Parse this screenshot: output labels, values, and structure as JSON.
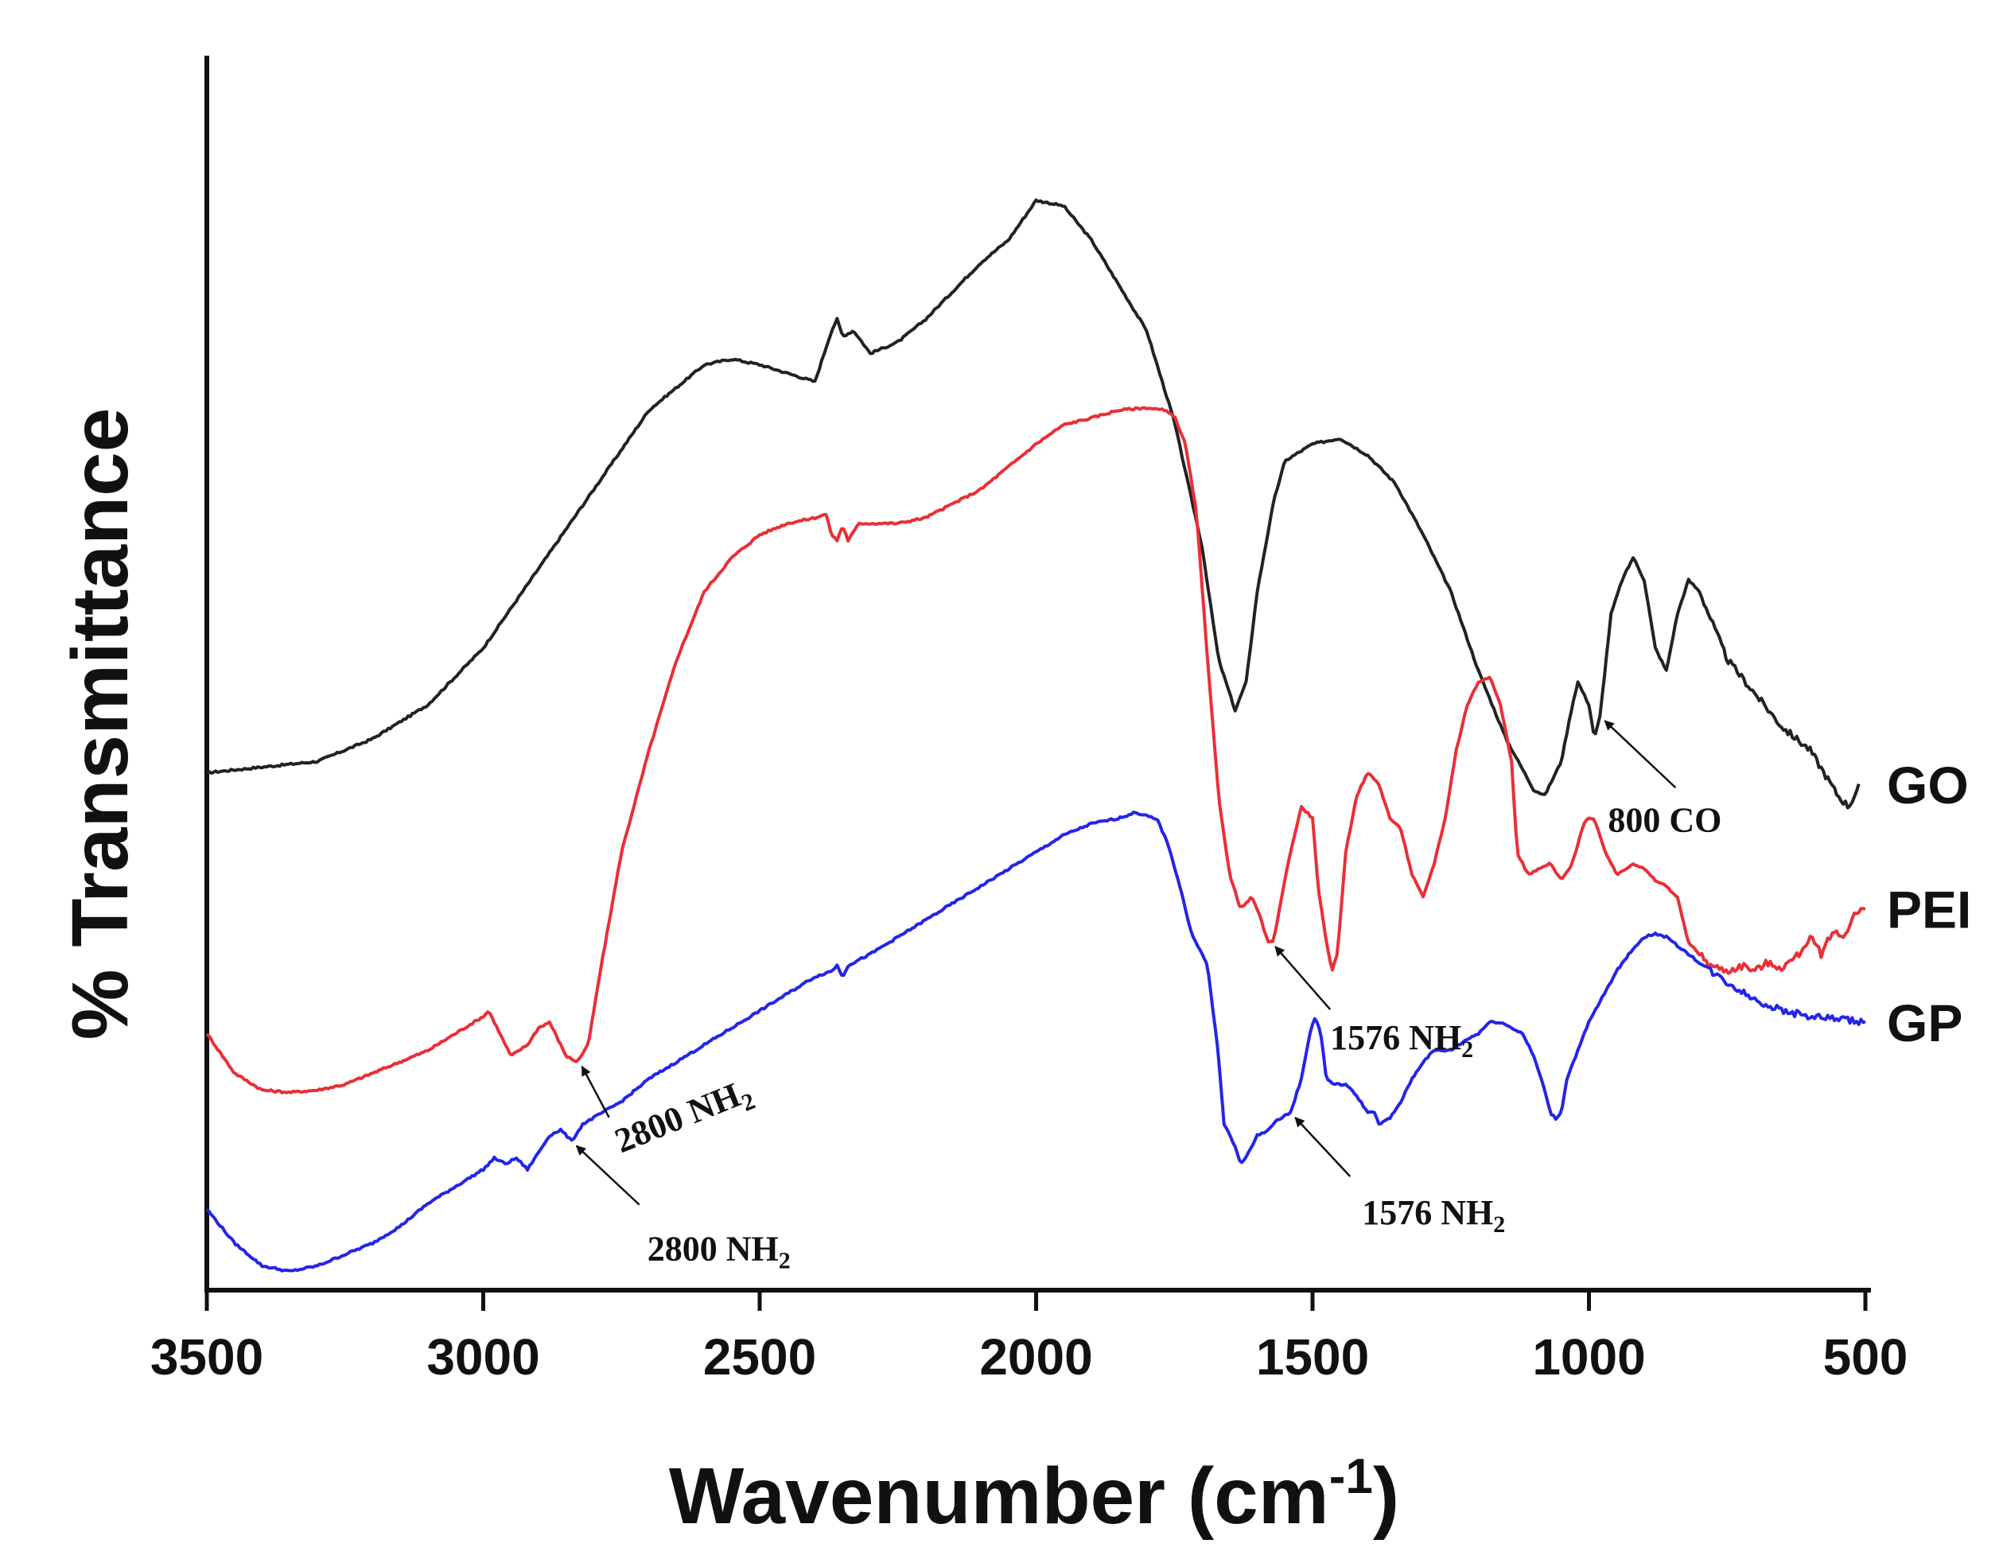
{
  "chart_data": {
    "type": "line",
    "title": "",
    "xlabel": "Wavenumber (cm",
    "xlabel_sup": "-1",
    "xlabel_end": ")",
    "ylabel": "% Transmittance",
    "xlim": [
      3500,
      500
    ],
    "ylim": [
      0,
      100
    ],
    "x_ticks": [
      "3500",
      "3000",
      "2500",
      "2000",
      "1500",
      "1000",
      "500"
    ],
    "x_tick_values": [
      3500,
      3000,
      2500,
      2000,
      1500,
      1000,
      500
    ],
    "grid": false,
    "legend_position": "right, beside each curve",
    "series": [
      {
        "name": "GO",
        "color": "#222222",
        "points": [
          [
            3500,
            42
          ],
          [
            3300,
            43
          ],
          [
            3200,
            45
          ],
          [
            3100,
            48
          ],
          [
            3000,
            53
          ],
          [
            2900,
            60
          ],
          [
            2800,
            67
          ],
          [
            2700,
            74
          ],
          [
            2600,
            78
          ],
          [
            2550,
            78.5
          ],
          [
            2500,
            78
          ],
          [
            2400,
            76.5
          ],
          [
            2370,
            81
          ],
          [
            2360,
            82
          ],
          [
            2350,
            80.5
          ],
          [
            2330,
            81
          ],
          [
            2300,
            79
          ],
          [
            2250,
            80
          ],
          [
            2200,
            82
          ],
          [
            2100,
            87
          ],
          [
            2050,
            89
          ],
          [
            2000,
            92.5
          ],
          [
            1950,
            92
          ],
          [
            1900,
            89
          ],
          [
            1850,
            85
          ],
          [
            1800,
            81
          ],
          [
            1750,
            73
          ],
          [
            1700,
            62
          ],
          [
            1670,
            52
          ],
          [
            1640,
            47.5
          ],
          [
            1620,
            50
          ],
          [
            1600,
            58
          ],
          [
            1570,
            66
          ],
          [
            1550,
            69.5
          ],
          [
            1500,
            71
          ],
          [
            1450,
            71.5
          ],
          [
            1400,
            70
          ],
          [
            1350,
            67.5
          ],
          [
            1300,
            63
          ],
          [
            1250,
            58
          ],
          [
            1200,
            51
          ],
          [
            1150,
            45
          ],
          [
            1100,
            40.5
          ],
          [
            1080,
            40
          ],
          [
            1050,
            43
          ],
          [
            1030,
            48
          ],
          [
            1020,
            50
          ],
          [
            1000,
            48
          ],
          [
            990,
            45
          ],
          [
            980,
            47
          ],
          [
            960,
            56
          ],
          [
            940,
            59
          ],
          [
            920,
            61
          ],
          [
            900,
            59
          ],
          [
            880,
            53
          ],
          [
            860,
            51
          ],
          [
            840,
            56
          ],
          [
            820,
            59
          ],
          [
            800,
            58
          ],
          [
            750,
            52
          ],
          [
            700,
            49
          ],
          [
            650,
            46
          ],
          [
            600,
            44
          ],
          [
            550,
            40
          ],
          [
            530,
            39
          ],
          [
            510,
            41
          ]
        ]
      },
      {
        "name": "PEI",
        "color": "#ea2f35",
        "points": [
          [
            3500,
            19
          ],
          [
            3450,
            15.5
          ],
          [
            3400,
            14
          ],
          [
            3350,
            13.8
          ],
          [
            3300,
            14
          ],
          [
            3250,
            14.5
          ],
          [
            3200,
            15.5
          ],
          [
            3100,
            17.5
          ],
          [
            3000,
            20.5
          ],
          [
            2990,
            21
          ],
          [
            2950,
            17
          ],
          [
            2920,
            18
          ],
          [
            2900,
            19.5
          ],
          [
            2880,
            20
          ],
          [
            2850,
            17
          ],
          [
            2830,
            16.5
          ],
          [
            2810,
            18
          ],
          [
            2790,
            24
          ],
          [
            2750,
            35
          ],
          [
            2700,
            44
          ],
          [
            2650,
            52
          ],
          [
            2600,
            58
          ],
          [
            2550,
            61
          ],
          [
            2500,
            63
          ],
          [
            2450,
            64
          ],
          [
            2400,
            64.5
          ],
          [
            2380,
            64.8
          ],
          [
            2370,
            63
          ],
          [
            2360,
            62.5
          ],
          [
            2350,
            63.8
          ],
          [
            2340,
            62.5
          ],
          [
            2320,
            64
          ],
          [
            2300,
            64
          ],
          [
            2250,
            64
          ],
          [
            2200,
            64.5
          ],
          [
            2100,
            67
          ],
          [
            2000,
            71
          ],
          [
            1950,
            72.7
          ],
          [
            1900,
            73.3
          ],
          [
            1850,
            74
          ],
          [
            1800,
            74.2
          ],
          [
            1770,
            74
          ],
          [
            1750,
            73.5
          ],
          [
            1730,
            71
          ],
          [
            1710,
            65
          ],
          [
            1690,
            52
          ],
          [
            1670,
            40
          ],
          [
            1650,
            33
          ],
          [
            1630,
            30
          ],
          [
            1610,
            31
          ],
          [
            1600,
            30
          ],
          [
            1580,
            27
          ],
          [
            1570,
            27.2
          ],
          [
            1560,
            30
          ],
          [
            1540,
            35
          ],
          [
            1520,
            39
          ],
          [
            1500,
            38
          ],
          [
            1490,
            32
          ],
          [
            1475,
            27
          ],
          [
            1465,
            24.5
          ],
          [
            1455,
            26
          ],
          [
            1440,
            35
          ],
          [
            1420,
            40
          ],
          [
            1400,
            42
          ],
          [
            1380,
            41
          ],
          [
            1360,
            38
          ],
          [
            1340,
            37
          ],
          [
            1320,
            33
          ],
          [
            1300,
            31
          ],
          [
            1280,
            34
          ],
          [
            1260,
            38
          ],
          [
            1240,
            44
          ],
          [
            1220,
            48
          ],
          [
            1200,
            50
          ],
          [
            1180,
            50.5
          ],
          [
            1160,
            48
          ],
          [
            1140,
            43
          ],
          [
            1130,
            35
          ],
          [
            1110,
            33
          ],
          [
            1090,
            33.5
          ],
          [
            1070,
            34
          ],
          [
            1050,
            32.5
          ],
          [
            1030,
            34
          ],
          [
            1010,
            37.5
          ],
          [
            1000,
            38
          ],
          [
            990,
            37.8
          ],
          [
            970,
            35
          ],
          [
            950,
            33
          ],
          [
            920,
            34
          ],
          [
            900,
            33.5
          ],
          [
            880,
            32.5
          ],
          [
            860,
            32
          ],
          [
            840,
            31
          ],
          [
            820,
            27
          ],
          [
            800,
            26
          ],
          [
            780,
            25
          ],
          [
            750,
            24.5
          ],
          [
            720,
            25
          ],
          [
            700,
            24.5
          ],
          [
            680,
            25.2
          ],
          [
            650,
            24.8
          ],
          [
            620,
            26
          ],
          [
            600,
            27.5
          ],
          [
            580,
            26
          ],
          [
            560,
            28
          ],
          [
            540,
            27.5
          ],
          [
            520,
            29.5
          ],
          [
            500,
            30
          ]
        ]
      },
      {
        "name": "GP",
        "color": "#2424ea",
        "points": [
          [
            3500,
            3.5
          ],
          [
            3450,
            0.5
          ],
          [
            3400,
            -1.5
          ],
          [
            3350,
            -2
          ],
          [
            3300,
            -1.5
          ],
          [
            3250,
            -0.5
          ],
          [
            3200,
            0.5
          ],
          [
            3150,
            2
          ],
          [
            3100,
            4
          ],
          [
            3050,
            5.5
          ],
          [
            3000,
            7
          ],
          [
            2980,
            8
          ],
          [
            2960,
            7.5
          ],
          [
            2940,
            8
          ],
          [
            2920,
            7
          ],
          [
            2900,
            8.5
          ],
          [
            2880,
            10
          ],
          [
            2860,
            10.5
          ],
          [
            2840,
            9.5
          ],
          [
            2820,
            11
          ],
          [
            2750,
            13
          ],
          [
            2700,
            15
          ],
          [
            2600,
            18
          ],
          [
            2500,
            21
          ],
          [
            2400,
            24
          ],
          [
            2370,
            24.5
          ],
          [
            2360,
            25
          ],
          [
            2350,
            24
          ],
          [
            2340,
            25
          ],
          [
            2300,
            26
          ],
          [
            2200,
            29
          ],
          [
            2100,
            32
          ],
          [
            2000,
            35
          ],
          [
            1950,
            36.5
          ],
          [
            1900,
            37.5
          ],
          [
            1850,
            38
          ],
          [
            1820,
            38.5
          ],
          [
            1800,
            38.2
          ],
          [
            1780,
            37.8
          ],
          [
            1760,
            35.5
          ],
          [
            1740,
            32
          ],
          [
            1720,
            28
          ],
          [
            1700,
            26
          ],
          [
            1690,
            25
          ],
          [
            1680,
            21
          ],
          [
            1670,
            17
          ],
          [
            1660,
            11
          ],
          [
            1640,
            9
          ],
          [
            1630,
            7.5
          ],
          [
            1615,
            8.5
          ],
          [
            1600,
            10
          ],
          [
            1580,
            10.5
          ],
          [
            1560,
            11.5
          ],
          [
            1540,
            12
          ],
          [
            1520,
            15
          ],
          [
            1505,
            19
          ],
          [
            1495,
            20.5
          ],
          [
            1485,
            19
          ],
          [
            1475,
            15
          ],
          [
            1460,
            14.5
          ],
          [
            1440,
            14.5
          ],
          [
            1420,
            13.5
          ],
          [
            1400,
            12
          ],
          [
            1390,
            12.2
          ],
          [
            1380,
            11
          ],
          [
            1360,
            11.5
          ],
          [
            1340,
            13
          ],
          [
            1320,
            15
          ],
          [
            1300,
            16.5
          ],
          [
            1280,
            17.5
          ],
          [
            1250,
            17.5
          ],
          [
            1220,
            18.5
          ],
          [
            1200,
            19
          ],
          [
            1180,
            20
          ],
          [
            1160,
            20
          ],
          [
            1140,
            19.5
          ],
          [
            1120,
            19
          ],
          [
            1100,
            17
          ],
          [
            1080,
            14
          ],
          [
            1070,
            12
          ],
          [
            1060,
            11.5
          ],
          [
            1050,
            12
          ],
          [
            1040,
            15
          ],
          [
            1000,
            20
          ],
          [
            950,
            24.5
          ],
          [
            920,
            26.5
          ],
          [
            900,
            27.5
          ],
          [
            880,
            27.8
          ],
          [
            860,
            27.5
          ],
          [
            820,
            26
          ],
          [
            780,
            24.5
          ],
          [
            750,
            23.5
          ],
          [
            700,
            22
          ],
          [
            650,
            21
          ],
          [
            600,
            20.5
          ],
          [
            550,
            20.3
          ],
          [
            500,
            20
          ]
        ]
      }
    ],
    "legend": [
      {
        "label": "GO",
        "series": "GO"
      },
      {
        "label": "PEI",
        "series": "PEI"
      },
      {
        "label": "GP",
        "series": "GP"
      }
    ],
    "annotations": [
      {
        "id": "go-800",
        "text": "800 CO",
        "sub": "",
        "x": 980,
        "series": "GO"
      },
      {
        "id": "pei-2800",
        "text": "2800 NH",
        "sub": "2",
        "x": 2830,
        "series": "PEI"
      },
      {
        "id": "pei-1576",
        "text": "1576 NH",
        "sub": "2",
        "x": 1576,
        "series": "PEI"
      },
      {
        "id": "gp-2800",
        "text": "2800 NH",
        "sub": "2",
        "x": 2840,
        "series": "GP"
      },
      {
        "id": "gp-1576",
        "text": "1576 NH",
        "sub": "2",
        "x": 1540,
        "series": "GP"
      }
    ]
  }
}
